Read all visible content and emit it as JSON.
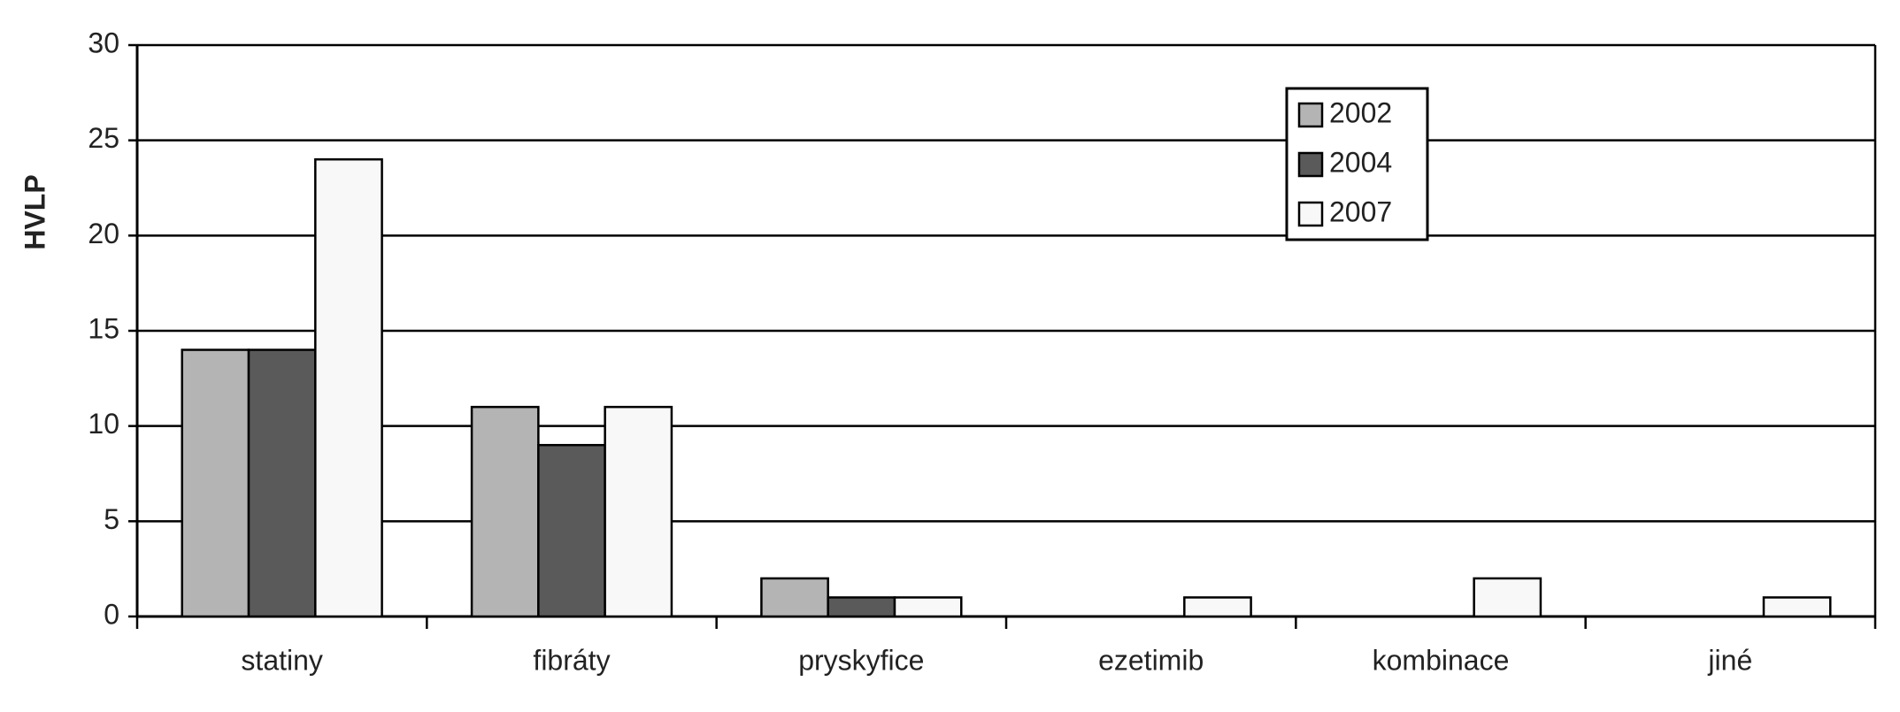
{
  "chart_data": {
    "type": "bar",
    "y_label": "HVLP",
    "categories": [
      "statiny",
      "fibráty",
      "pryskyfice",
      "ezetimib",
      "kombinace",
      "jiné"
    ],
    "series": [
      {
        "name": "2002",
        "color": "#b4b4b4",
        "values": [
          14,
          11,
          2,
          0,
          0,
          0
        ]
      },
      {
        "name": "2004",
        "color": "#5a5a5a",
        "values": [
          14,
          9,
          1,
          0,
          0,
          0
        ]
      },
      {
        "name": "2007",
        "color": "#f8f8f8",
        "values": [
          24,
          11,
          1,
          1,
          2,
          1
        ]
      }
    ],
    "ylim": [
      0,
      30
    ],
    "yticks": [
      0,
      5,
      10,
      15,
      20,
      25,
      30
    ],
    "grid": true,
    "legend": "top-right"
  }
}
